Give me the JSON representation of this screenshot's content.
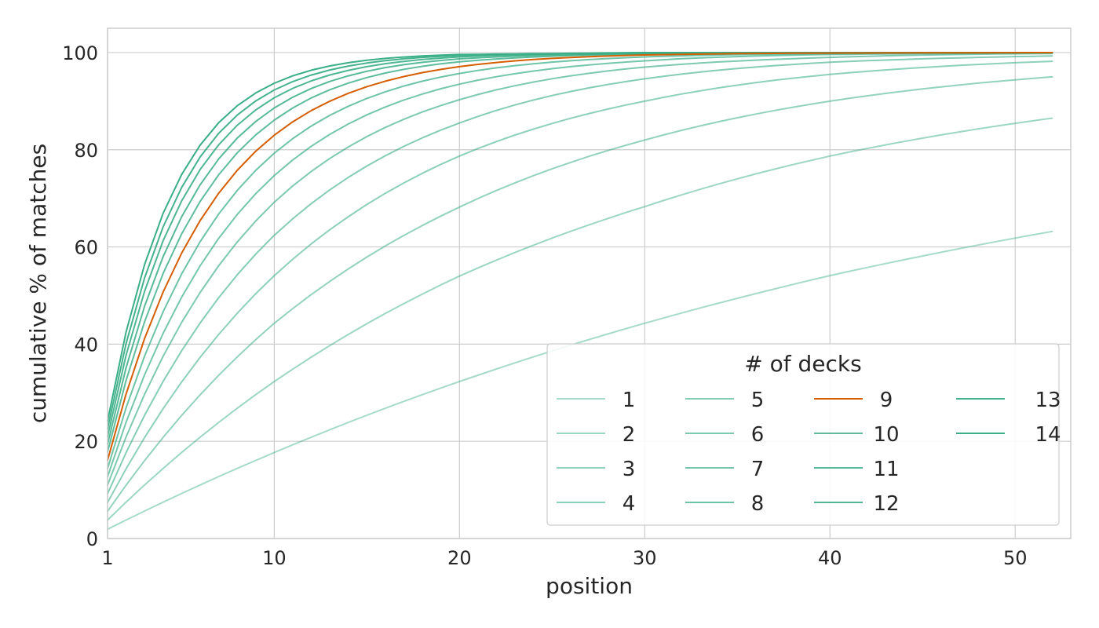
{
  "chart_data": {
    "type": "line",
    "xlabel": "position",
    "ylabel": "cumulative % of matches",
    "xlim": [
      1,
      53
    ],
    "ylim": [
      0,
      105
    ],
    "x_ticks": [
      1,
      10,
      20,
      30,
      40,
      50
    ],
    "y_ticks": [
      0,
      20,
      40,
      60,
      80,
      100
    ],
    "grid": true,
    "x_range": [
      1,
      52
    ],
    "legend": {
      "title": "# of decks",
      "placement": "bottom-right",
      "columns": 4
    },
    "highlight_color": "#d55e00",
    "series_color": "#3aaf87",
    "series": [
      {
        "name": "1",
        "color": "#3aaf87",
        "opacity": 0.45,
        "values_at": {
          "1": 1.9,
          "10": 17.7,
          "20": 32.3,
          "30": 44.3,
          "40": 54.1,
          "52": 63.2
        }
      },
      {
        "name": "2",
        "color": "#3aaf87",
        "opacity": 0.5,
        "values_at": {
          "1": 3.8,
          "10": 32.3,
          "20": 54.0,
          "30": 68.3,
          "40": 78.7,
          "52": 86.5
        }
      },
      {
        "name": "3",
        "color": "#3aaf87",
        "opacity": 0.55,
        "values_at": {
          "1": 5.6,
          "10": 44.3,
          "20": 68.2,
          "30": 82.0,
          "40": 90.0,
          "52": 95.0
        }
      },
      {
        "name": "4",
        "color": "#3aaf87",
        "opacity": 0.58,
        "values_at": {
          "1": 7.4,
          "10": 54.1,
          "20": 78.7,
          "30": 90.0,
          "40": 95.5,
          "52": 98.2
        }
      },
      {
        "name": "5",
        "color": "#3aaf87",
        "opacity": 0.62,
        "values_at": {
          "1": 9.2,
          "10": 62.4,
          "20": 85.5,
          "30": 94.6,
          "40": 98.0,
          "52": 99.3
        }
      },
      {
        "name": "6",
        "color": "#3aaf87",
        "opacity": 0.66,
        "values_at": {
          "1": 11.0,
          "10": 69.2,
          "20": 90.3,
          "30": 97.0,
          "40": 99.0,
          "52": 99.8
        }
      },
      {
        "name": "7",
        "color": "#3aaf87",
        "opacity": 0.7,
        "values_at": {
          "1": 12.7,
          "10": 74.7,
          "20": 93.5,
          "30": 98.3,
          "40": 99.6,
          "52": 99.9
        }
      },
      {
        "name": "8",
        "color": "#3aaf87",
        "opacity": 0.74,
        "values_at": {
          "1": 14.4,
          "10": 79.3,
          "20": 95.7,
          "30": 99.1,
          "40": 99.8,
          "52": 100
        }
      },
      {
        "name": "9",
        "color": "#d55e00",
        "opacity": 1.0,
        "values_at": {
          "1": 16.1,
          "10": 83.0,
          "20": 97.1,
          "30": 99.5,
          "40": 99.9,
          "52": 100
        }
      },
      {
        "name": "10",
        "color": "#3aaf87",
        "opacity": 0.82,
        "values_at": {
          "1": 17.8,
          "10": 86.1,
          "20": 98.1,
          "30": 99.7,
          "40": 100,
          "52": 100
        }
      },
      {
        "name": "11",
        "color": "#3aaf87",
        "opacity": 0.86,
        "values_at": {
          "1": 19.4,
          "10": 88.6,
          "20": 98.7,
          "30": 99.8,
          "40": 100,
          "52": 100
        }
      },
      {
        "name": "12",
        "color": "#3aaf87",
        "opacity": 0.9,
        "values_at": {
          "1": 21.0,
          "10": 90.7,
          "20": 99.1,
          "30": 99.9,
          "40": 100,
          "52": 100
        }
      },
      {
        "name": "13",
        "color": "#3aaf87",
        "opacity": 0.95,
        "values_at": {
          "1": 22.6,
          "10": 92.3,
          "20": 99.4,
          "30": 100,
          "40": 100,
          "52": 100
        }
      },
      {
        "name": "14",
        "color": "#3aaf87",
        "opacity": 1.0,
        "values_at": {
          "1": 24.2,
          "10": 93.7,
          "20": 99.6,
          "30": 100,
          "40": 100,
          "52": 100
        }
      }
    ]
  }
}
